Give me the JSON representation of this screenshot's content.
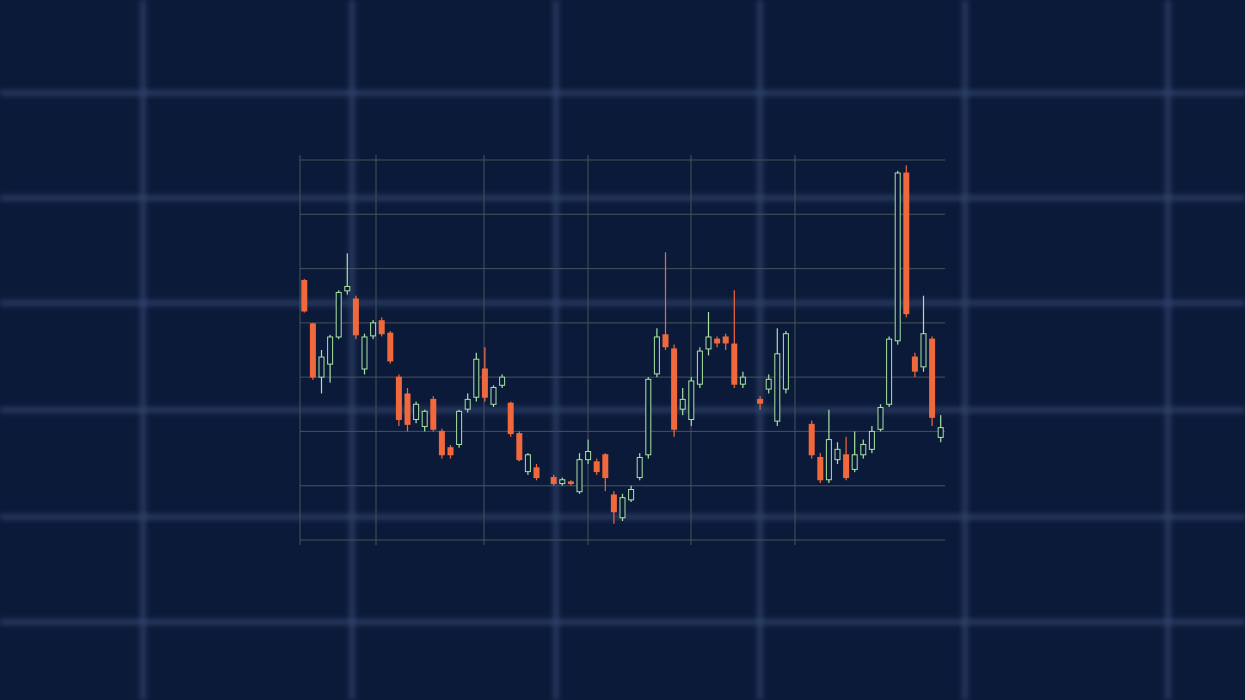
{
  "chart_data": {
    "type": "candlestick",
    "x": [
      0,
      1,
      2,
      3,
      4,
      5,
      6,
      7,
      8,
      9,
      10,
      11,
      12,
      13,
      14,
      15,
      16,
      17,
      18,
      19,
      20,
      21,
      22,
      23,
      24,
      25,
      26,
      27,
      29,
      30,
      31,
      32,
      33,
      34,
      35,
      36,
      37,
      38,
      39,
      40,
      41,
      42,
      43,
      44,
      45,
      46,
      47,
      48,
      49,
      50,
      51,
      53,
      54,
      55,
      56,
      59,
      60,
      61,
      62,
      63,
      64,
      65,
      66,
      67,
      68,
      69,
      70,
      71,
      72,
      73,
      74
    ],
    "open": [
      4.78,
      3.98,
      3.0,
      3.24,
      3.74,
      4.59,
      4.44,
      3.15,
      3.76,
      4.04,
      3.81,
      3.0,
      2.69,
      2.22,
      2.09,
      2.59,
      2.0,
      1.7,
      1.76,
      2.41,
      2.63,
      3.15,
      2.5,
      2.85,
      2.52,
      1.96,
      1.26,
      1.33,
      1.15,
      1.04,
      1.07,
      0.89,
      1.48,
      1.44,
      1.57,
      0.83,
      0.41,
      0.74,
      1.15,
      1.57,
      3.06,
      3.78,
      3.52,
      2.41,
      2.22,
      2.87,
      3.52,
      3.7,
      3.74,
      3.61,
      2.87,
      2.59,
      2.78,
      2.19,
      2.78,
      2.13,
      1.52,
      1.11,
      1.48,
      1.57,
      1.3,
      1.57,
      1.67,
      2.04,
      2.5,
      3.67,
      6.76,
      3.37,
      3.19,
      3.7,
      1.89
    ],
    "high": [
      4.81,
      4.0,
      3.5,
      3.78,
      4.6,
      5.28,
      4.5,
      3.8,
      4.05,
      4.1,
      3.85,
      3.05,
      2.8,
      2.55,
      2.4,
      2.65,
      2.05,
      1.75,
      2.4,
      2.7,
      3.45,
      3.55,
      2.85,
      3.05,
      2.55,
      2.0,
      1.6,
      1.4,
      1.2,
      1.15,
      1.1,
      1.6,
      1.85,
      1.5,
      1.6,
      0.9,
      0.85,
      1.0,
      1.6,
      3.0,
      3.9,
      5.3,
      3.6,
      2.8,
      3.0,
      3.55,
      4.2,
      3.75,
      3.8,
      4.6,
      3.1,
      2.65,
      3.05,
      3.9,
      3.85,
      2.2,
      1.6,
      2.4,
      1.8,
      1.9,
      2.0,
      1.85,
      2.1,
      2.5,
      3.75,
      6.8,
      6.9,
      3.45,
      4.5,
      3.75,
      2.3
    ],
    "low": [
      4.19,
      2.95,
      2.7,
      2.9,
      3.7,
      4.52,
      3.7,
      3.05,
      3.7,
      3.75,
      3.25,
      2.1,
      2.0,
      2.15,
      2.0,
      2.0,
      1.5,
      1.5,
      1.7,
      2.35,
      2.55,
      2.55,
      2.45,
      2.8,
      1.9,
      1.45,
      1.2,
      1.1,
      1.0,
      1.0,
      1.0,
      0.85,
      1.4,
      1.2,
      0.9,
      0.3,
      0.35,
      0.7,
      1.1,
      1.5,
      3.0,
      3.5,
      1.9,
      2.3,
      2.1,
      2.8,
      3.4,
      3.55,
      3.5,
      2.8,
      2.8,
      2.4,
      2.7,
      2.1,
      2.7,
      1.5,
      1.05,
      1.05,
      1.4,
      1.1,
      1.25,
      1.5,
      1.6,
      2.0,
      2.45,
      3.6,
      4.1,
      3.0,
      3.1,
      2.1,
      1.8
    ],
    "close": [
      4.22,
      3.0,
      3.37,
      3.74,
      4.56,
      4.67,
      3.78,
      3.74,
      4.0,
      3.8,
      3.3,
      2.22,
      2.13,
      2.5,
      2.37,
      2.04,
      1.57,
      1.57,
      2.37,
      2.59,
      3.33,
      2.63,
      2.81,
      3.0,
      1.96,
      1.48,
      1.57,
      1.15,
      1.04,
      1.11,
      1.04,
      1.48,
      1.63,
      1.26,
      1.15,
      0.52,
      0.78,
      0.93,
      1.52,
      2.96,
      3.74,
      3.56,
      2.04,
      2.59,
      2.93,
      3.48,
      3.74,
      3.63,
      3.63,
      2.87,
      3.0,
      2.52,
      2.96,
      3.43,
      3.8,
      1.57,
      1.11,
      1.85,
      1.67,
      1.15,
      1.57,
      1.76,
      2.0,
      2.44,
      3.7,
      6.76,
      4.17,
      3.11,
      3.8,
      2.26,
      2.07
    ],
    "up_color": "#a6e3a1",
    "down_color": "#f0683c",
    "xlim": [
      -0.5,
      74.5
    ],
    "ylim": [
      0,
      7
    ],
    "yticks": [
      0,
      1,
      2,
      3,
      4,
      5,
      6,
      7
    ],
    "grid": true
  }
}
